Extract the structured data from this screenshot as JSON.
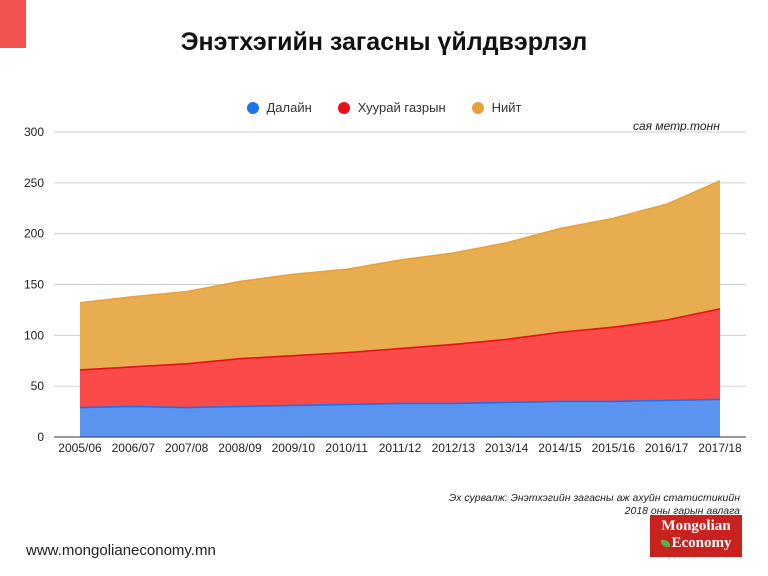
{
  "title": "Энэтхэгийн загасны үйлдвэрлэл",
  "unit_label": "сая метр.тонн",
  "source": {
    "line1": "Эх сурвалж: Энэтхэгийн загасны аж ахуйн статистикийн",
    "line2": "2018 оны гарын авлага"
  },
  "website": "www.mongolianeconomy.mn",
  "logo": {
    "line1": "Mongolian",
    "line2": "Economy"
  },
  "colors": {
    "accent": "#f0524f",
    "logo_bg": "#c9211e",
    "marine": "#4a8ef0",
    "inland": "#fc4a4a",
    "total": "#e8ad4f"
  },
  "chart_data": {
    "type": "area",
    "title": "Энэтхэгийн загасны үйлдвэрлэл",
    "legend_position": "top-center",
    "categories": [
      "2005/06",
      "2006/07",
      "2007/08",
      "2008/09",
      "2009/10",
      "2010/11",
      "2011/12",
      "2012/13",
      "2013/14",
      "2014/15",
      "2015/16",
      "2016/17",
      "2017/18"
    ],
    "series": [
      {
        "name": "Далайн",
        "color": "#1a73e8",
        "fill": "#5b94f0",
        "values": [
          29,
          30,
          29,
          30,
          31,
          32,
          33,
          33,
          34,
          35,
          35,
          36,
          37
        ]
      },
      {
        "name": "Хуурай газрын",
        "color": "#e8101a",
        "fill": "#fc4a4a",
        "values": [
          66,
          69,
          72,
          77,
          80,
          83,
          87,
          91,
          96,
          103,
          108,
          115,
          126
        ]
      },
      {
        "name": "Нийт",
        "color": "#e8a13a",
        "fill": "#e8ad4f",
        "values": [
          132,
          138,
          143,
          153,
          160,
          165,
          174,
          181,
          191,
          205,
          215,
          229,
          252
        ]
      }
    ],
    "ylim": [
      0,
      300
    ],
    "yticks": [
      0,
      50,
      100,
      150,
      200,
      250,
      300
    ],
    "grid": true,
    "xlabel": "",
    "ylabel": "сая метр.тонн"
  }
}
